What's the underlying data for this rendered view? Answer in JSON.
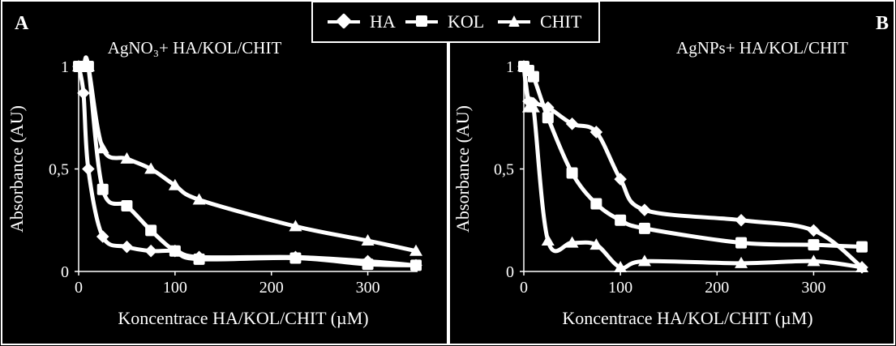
{
  "legend": {
    "items": [
      {
        "name": "HA",
        "marker": "diamond"
      },
      {
        "name": "KOL",
        "marker": "square"
      },
      {
        "name": "CHIT",
        "marker": "triangle"
      }
    ]
  },
  "colors": {
    "background": "#000000",
    "foreground": "#ffffff"
  },
  "chart_data": [
    {
      "type": "line",
      "panel_letter": "A",
      "title": "AgNO₃+ HA/KOL/CHIT",
      "xlabel": "Koncentrace HA/KOL/CHIT (µM)",
      "ylabel": "Absorbance (AU)",
      "xlim": [
        0,
        350
      ],
      "ylim": [
        0,
        1
      ],
      "xticks": [
        0,
        100,
        200,
        300
      ],
      "yticks": [
        0,
        0.5,
        1
      ],
      "ytick_labels": [
        "0",
        "0,5",
        "1"
      ],
      "series": [
        {
          "name": "HA",
          "marker": "diamond",
          "x": [
            0,
            5,
            10,
            25,
            50,
            75,
            100,
            125,
            225,
            300,
            350
          ],
          "y": [
            1,
            0.87,
            0.5,
            0.17,
            0.12,
            0.1,
            0.1,
            0.07,
            0.07,
            0.05,
            0.03
          ]
        },
        {
          "name": "KOL",
          "marker": "square",
          "x": [
            0,
            5,
            10,
            25,
            50,
            75,
            100,
            125,
            225,
            300,
            350
          ],
          "y": [
            1,
            1,
            1,
            0.4,
            0.32,
            0.2,
            0.1,
            0.06,
            0.065,
            0.035,
            0.03
          ]
        },
        {
          "name": "CHIT",
          "marker": "triangle",
          "x": [
            0,
            5,
            10,
            25,
            50,
            75,
            100,
            125,
            225,
            300,
            350
          ],
          "y": [
            1,
            1,
            1,
            0.6,
            0.55,
            0.5,
            0.42,
            0.35,
            0.22,
            0.15,
            0.1
          ]
        }
      ]
    },
    {
      "type": "line",
      "panel_letter": "B",
      "title": "AgNPs+ HA/KOL/CHIT",
      "xlabel": "Koncentrace HA/KOL/CHIT (µM)",
      "ylabel": "Absorbance (AU)",
      "xlim": [
        0,
        350
      ],
      "ylim": [
        0,
        1
      ],
      "xticks": [
        0,
        100,
        200,
        300
      ],
      "yticks": [
        0,
        0.5,
        1
      ],
      "ytick_labels": [
        "0",
        "0,5",
        "1"
      ],
      "series": [
        {
          "name": "HA",
          "marker": "diamond",
          "x": [
            0,
            5,
            10,
            25,
            50,
            75,
            100,
            125,
            225,
            300,
            350
          ],
          "y": [
            1,
            0.83,
            0.82,
            0.8,
            0.72,
            0.68,
            0.45,
            0.3,
            0.25,
            0.2,
            0.02
          ]
        },
        {
          "name": "KOL",
          "marker": "square",
          "x": [
            0,
            5,
            10,
            25,
            50,
            75,
            100,
            125,
            225,
            300,
            350
          ],
          "y": [
            1,
            0.98,
            0.95,
            0.75,
            0.48,
            0.33,
            0.25,
            0.21,
            0.14,
            0.13,
            0.12
          ]
        },
        {
          "name": "CHIT",
          "marker": "triangle",
          "x": [
            0,
            5,
            10,
            25,
            50,
            75,
            100,
            125,
            225,
            300,
            350
          ],
          "y": [
            1,
            0.8,
            0.8,
            0.15,
            0.14,
            0.13,
            0.02,
            0.05,
            0.04,
            0.05,
            0.02
          ]
        }
      ]
    }
  ]
}
